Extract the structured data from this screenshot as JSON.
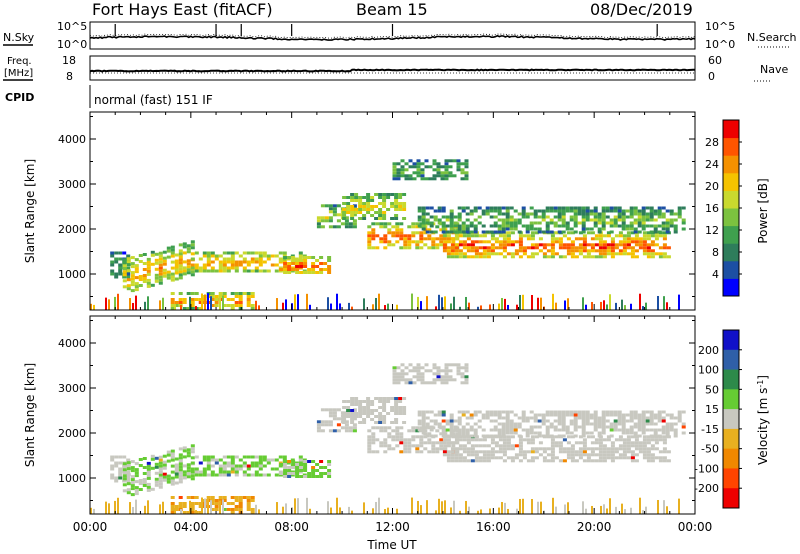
{
  "header": {
    "station": "Fort Hays East (fitACF)",
    "beam": "Beam 15",
    "date": "08/Dec/2019"
  },
  "ancillary": {
    "nsky_label": "N.Sky",
    "nsky_ticks": [
      "10^5",
      "10^0"
    ],
    "nsearch_label": "N.Search",
    "nsearch_ticks": [
      "10^5",
      "10^0"
    ],
    "freq_label": "Freq.",
    "freq_unit": "[MHz]",
    "freq_ticks": [
      "18",
      "8"
    ],
    "nave_label": "Nave",
    "nave_ticks": [
      "60",
      "0"
    ],
    "cpid_label": "CPID",
    "cpid_text": "normal (fast) 151 IF"
  },
  "colors": {
    "power": [
      "#0000ff",
      "#1c4fa3",
      "#2e7d5b",
      "#3fa04e",
      "#7cc23f",
      "#c9d92e",
      "#f5c300",
      "#f59100",
      "#ff5500",
      "#ee0000"
    ],
    "velocity": [
      "#1010c8",
      "#2f5fa8",
      "#2d8a4a",
      "#66cc33",
      "#c8c8c0",
      "#e8b020",
      "#f08800",
      "#ff4400",
      "#ee0000"
    ]
  },
  "chart_data": [
    {
      "type": "heatmap",
      "name": "power",
      "ylabel": "Slant Range [km]",
      "yticks": [
        "1000",
        "2000",
        "3000",
        "4000"
      ],
      "ylim": [
        200,
        4600
      ],
      "xlim": [
        0,
        24
      ],
      "colorbar_label": "Power [dB]",
      "colorbar_ticks": [
        "4",
        "8",
        "12",
        "16",
        "20",
        "24",
        "28"
      ],
      "echo_regions": [
        {
          "t": [
            0.8,
            1.5
          ],
          "r": [
            900,
            1500
          ],
          "level": 0.35
        },
        {
          "t": [
            1.3,
            4.0
          ],
          "r": [
            550,
            1350
          ],
          "level": 0.7
        },
        {
          "t": [
            4.0,
            8.5
          ],
          "r": [
            1050,
            1500
          ],
          "level": 0.75
        },
        {
          "t": [
            7.5,
            9.5
          ],
          "r": [
            1000,
            1400
          ],
          "level": 0.85
        },
        {
          "t": [
            9.0,
            10.5
          ],
          "r": [
            2050,
            2550
          ],
          "level": 0.55
        },
        {
          "t": [
            10.0,
            12.5
          ],
          "r": [
            2200,
            2800
          ],
          "level": 0.6
        },
        {
          "t": [
            11.0,
            14.5
          ],
          "r": [
            1550,
            2150
          ],
          "level": 0.8
        },
        {
          "t": [
            14.0,
            23.0
          ],
          "r": [
            1350,
            1950
          ],
          "level": 0.85
        },
        {
          "t": [
            13.0,
            23.5
          ],
          "r": [
            1950,
            2500
          ],
          "level": 0.45
        },
        {
          "t": [
            12.0,
            15.0
          ],
          "r": [
            3100,
            3550
          ],
          "level": 0.4
        },
        {
          "t": [
            3.2,
            6.5
          ],
          "r": [
            250,
            600
          ],
          "level": 0.8
        }
      ]
    },
    {
      "type": "heatmap",
      "name": "velocity",
      "ylabel": "Slant Range [km]",
      "yticks": [
        "1000",
        "2000",
        "3000",
        "4000"
      ],
      "ylim": [
        200,
        4600
      ],
      "xlim": [
        0,
        24
      ],
      "xlabel": "Time UT",
      "xticks": [
        "00:00",
        "04:00",
        "08:00",
        "12:00",
        "16:00",
        "20:00",
        "00:00"
      ],
      "colorbar_label": "Velocity [m s",
      "colorbar_label_exp": "-1",
      "colorbar_ticks": [
        "200",
        "100",
        "50",
        "15",
        "-15",
        "-50",
        "-100",
        "-200"
      ]
    }
  ]
}
